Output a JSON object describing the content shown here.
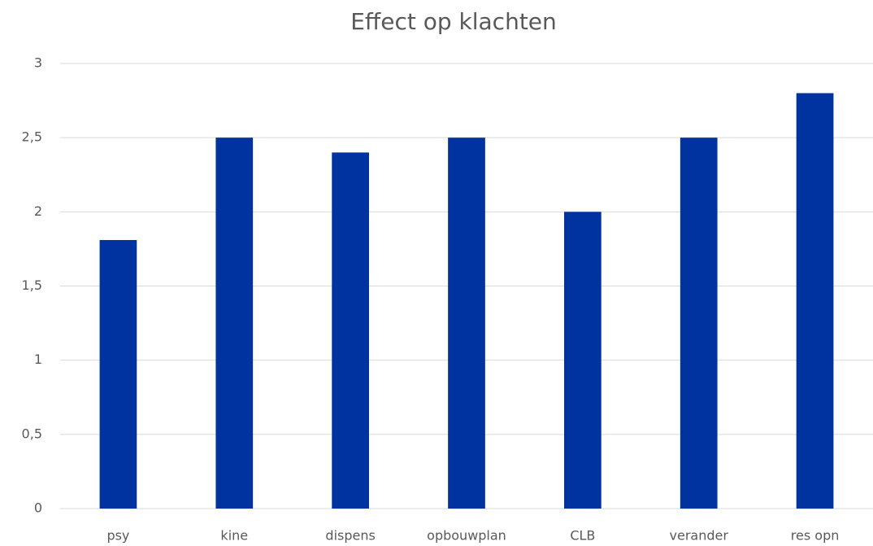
{
  "chart_data": {
    "type": "bar",
    "title": "Effect op klachten",
    "categories": [
      "psy",
      "kine",
      "dispens",
      "opbouwplan",
      "CLB",
      "verander",
      "res opn"
    ],
    "values": [
      1.81,
      2.5,
      2.4,
      2.5,
      2.0,
      2.5,
      2.8
    ],
    "color": "#0033a0",
    "ylim": [
      0,
      3
    ],
    "yticks": [
      0,
      {
        "value": 0.5,
        "label": "0,5"
      },
      1,
      {
        "value": 1.5,
        "label": "1,5"
      },
      2,
      {
        "value": 2.5,
        "label": "2,5"
      },
      3
    ],
    "grid": true
  }
}
